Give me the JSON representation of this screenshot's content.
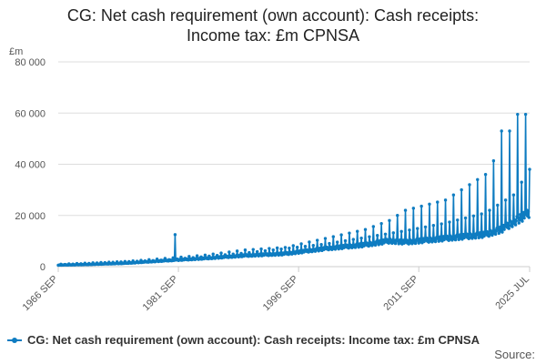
{
  "title_lines": [
    "CG: Net cash requirement (own account): Cash receipts:",
    "Income tax: £m CPNSA"
  ],
  "source_label": "Source:",
  "colors": {
    "series": "#0e7cc1",
    "grid": "#dddddd",
    "axis": "#cccccc"
  },
  "chart_data": {
    "type": "line",
    "title": "CG: Net cash requirement (own account): Cash receipts: Income tax: £m CPNSA",
    "y_unit": "£m",
    "ylim": [
      0,
      80000
    ],
    "y_ticks": [
      0,
      20000,
      40000,
      60000,
      80000
    ],
    "y_tick_labels": [
      "0",
      "20 000",
      "40 000",
      "60 000",
      "80 000"
    ],
    "x_range": [
      "1966-09",
      "2025-07"
    ],
    "x_ticks": [
      "1966-09",
      "1981-09",
      "1996-09",
      "2011-09",
      "2025-07"
    ],
    "x_tick_labels": [
      "1966 SEP",
      "1981 SEP",
      "1996 SEP",
      "2011 SEP",
      "2025 JUL"
    ],
    "grid": true,
    "legend_position": "bottom-left",
    "series": [
      {
        "name": "CG: Net cash requirement (own account): Cash receipts: Income tax: £m CPNSA",
        "frequency": "monthly",
        "trend_anchors": [
          [
            "1966-09",
            600
          ],
          [
            "1970-01",
            800
          ],
          [
            "1975-01",
            1300
          ],
          [
            "1980-01",
            2300
          ],
          [
            "1985-01",
            3200
          ],
          [
            "1990-01",
            4300
          ],
          [
            "1995-01",
            5000
          ],
          [
            "2000-01",
            7000
          ],
          [
            "2005-01",
            8500
          ],
          [
            "2008-01",
            10000
          ],
          [
            "2010-01",
            9500
          ],
          [
            "2015-01",
            11000
          ],
          [
            "2020-01",
            12500
          ],
          [
            "2022-01",
            14500
          ],
          [
            "2025-07",
            21000
          ]
        ],
        "peak_anchors": [
          [
            "1966-09",
            900
          ],
          [
            "1975-01",
            2000
          ],
          [
            "1980-01",
            3200
          ],
          [
            "1985-01",
            4500
          ],
          [
            "1990-01",
            6500
          ],
          [
            "1995-01",
            7500
          ],
          [
            "2000-01",
            11000
          ],
          [
            "2005-01",
            14500
          ],
          [
            "2008-01",
            18000
          ],
          [
            "2010-01",
            22000
          ],
          [
            "2015-01",
            26000
          ],
          [
            "2018-01",
            32000
          ],
          [
            "2020-01",
            36000
          ],
          [
            "2023-01",
            52000
          ],
          [
            "2025-01",
            59500
          ],
          [
            "2025-07",
            38000
          ]
        ],
        "secondary_peak_anchors": [
          [
            "1966-09",
            750
          ],
          [
            "1980-01",
            2600
          ],
          [
            "1990-01",
            5300
          ],
          [
            "2000-01",
            8800
          ],
          [
            "2010-01",
            14000
          ],
          [
            "2015-01",
            17000
          ],
          [
            "2020-01",
            21000
          ],
          [
            "2025-07",
            32000
          ]
        ],
        "annotated_points": [
          {
            "date": "1981-04",
            "value": 12500
          },
          {
            "date": "2022-01",
            "value": 53000
          },
          {
            "date": "2023-01",
            "value": 53000
          },
          {
            "date": "2024-01",
            "value": 59500
          },
          {
            "date": "2024-07",
            "value": 33000
          },
          {
            "date": "2025-07",
            "value": 38000
          }
        ]
      }
    ]
  }
}
